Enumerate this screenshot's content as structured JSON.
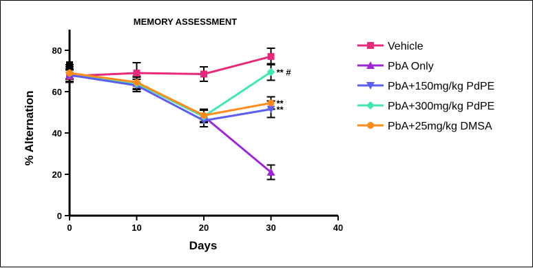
{
  "chart_data": {
    "type": "line",
    "title": "MEMORY ASSESSMENT",
    "xlabel": "Days",
    "ylabel": "% Alternation",
    "xlim": [
      0,
      40
    ],
    "ylim": [
      0,
      90
    ],
    "xticks": [
      0,
      10,
      20,
      30,
      40
    ],
    "yticks": [
      0,
      20,
      40,
      60,
      80
    ],
    "x": [
      0,
      10,
      20,
      30
    ],
    "legend_position": "right",
    "series": [
      {
        "name": "Vehicle",
        "color": "#e8287a",
        "marker": "square",
        "values": [
          67.5,
          69,
          68.5,
          77
        ],
        "errors": [
          3,
          5,
          3.5,
          4
        ]
      },
      {
        "name": "PbA Only",
        "color": "#9b27d6",
        "marker": "triangle-up",
        "values": [
          68,
          64,
          48,
          21
        ],
        "errors": [
          3,
          3,
          3,
          3.5
        ]
      },
      {
        "name": "PbA+150mg/kg PdPE",
        "color": "#5b5ef0",
        "marker": "triangle-down",
        "values": [
          68,
          63,
          46,
          51.5
        ],
        "errors": [
          3,
          3,
          3,
          4
        ]
      },
      {
        "name": "PbA+300mg/kg PdPE",
        "color": "#3ee8b0",
        "marker": "diamond",
        "values": [
          69,
          64,
          48,
          69.5
        ],
        "errors": [
          3,
          3,
          3,
          4
        ]
      },
      {
        "name": "PbA+25mg/kg DMSA",
        "color": "#ff8c1a",
        "marker": "circle",
        "values": [
          69,
          64.5,
          48.5,
          54.5
        ],
        "errors": [
          4,
          3,
          3,
          3
        ]
      }
    ],
    "outlier_marker": {
      "x": 0,
      "y": 73,
      "color": "#000000"
    },
    "annotations": [
      {
        "x": 30,
        "y": 69.5,
        "text": "** #"
      },
      {
        "x": 30,
        "y": 54.5,
        "text": "**"
      },
      {
        "x": 30,
        "y": 51.5,
        "text": "**"
      }
    ]
  }
}
